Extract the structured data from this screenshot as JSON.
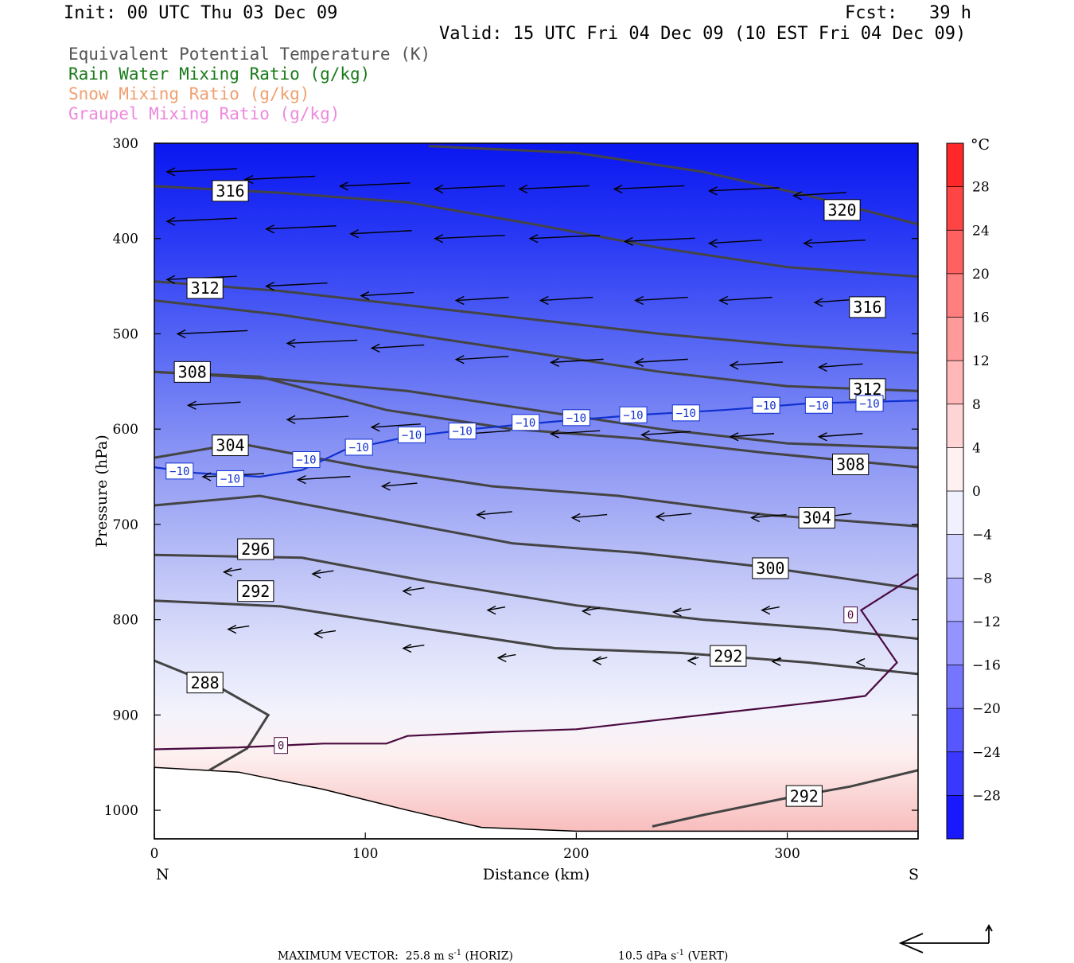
{
  "header": {
    "init": "Init: 00 UTC Thu 03 Dec 09",
    "fcst": "Fcst:   39 h",
    "valid": "Valid: 15 UTC Fri 04 Dec 09 (10 EST Fri 04 Dec 09)"
  },
  "fields": [
    "Equivalent Potential Temperature (K)",
    "Rain Water Mixing Ratio (g/kg)",
    "Snow Mixing Ratio (g/kg)",
    "Graupel Mixing Ratio (g/kg)"
  ],
  "colors": {
    "theta_e": "#444444",
    "rain": "#1a7a1a",
    "snow": "#f0a070",
    "graupel": "#ee88dd",
    "isotherm_minus10": "#1030d0",
    "isotherm_zero": "#4a0a40"
  },
  "footer": {
    "label": "MAXIMUM VECTOR:",
    "horiz_value": "25.8 m s",
    "horiz_unit": "(HORIZ)",
    "vert_value": "10.5 dPa s",
    "vert_unit": "(VERT)",
    "exponent": "-1"
  },
  "chart_data": {
    "type": "heatmap",
    "title": "",
    "xlabel": "Distance (km)",
    "ylabel": "Pressure (hPa)",
    "xlim": [
      0,
      362
    ],
    "ylim": [
      300,
      1030
    ],
    "x_ticks": [
      0,
      100,
      200,
      300
    ],
    "y_ticks": [
      300,
      400,
      500,
      600,
      700,
      800,
      900,
      1000
    ],
    "x_end_labels": {
      "left": "N",
      "right": "S"
    },
    "colorbar": {
      "unit": "°C",
      "range": [
        -32,
        32
      ],
      "step": 4,
      "labels": [
        28,
        24,
        20,
        16,
        12,
        8,
        4,
        0,
        -4,
        -8,
        -12,
        -16,
        -20,
        -24,
        -28
      ],
      "label_texts": [
        "28",
        "24",
        "20",
        "16",
        "12",
        "8",
        "4",
        "0",
        "−4",
        "−8",
        "−12",
        "−16",
        "−20",
        "−24",
        "−28"
      ]
    },
    "temperature_field_C": [
      {
        "p": 300,
        "t": -32
      },
      {
        "p": 400,
        "t": -26
      },
      {
        "p": 500,
        "t": -18
      },
      {
        "p": 600,
        "t": -11
      },
      {
        "p": 700,
        "t": -6
      },
      {
        "p": 800,
        "t": -2
      },
      {
        "p": 900,
        "t": 0
      },
      {
        "p": 1000,
        "t": 5
      }
    ],
    "theta_e_contours": [
      {
        "label": "316",
        "label_at": [
          36,
          350
        ],
        "points": [
          [
            0,
            345
          ],
          [
            60,
            352
          ],
          [
            120,
            362
          ],
          [
            180,
            385
          ],
          [
            240,
            410
          ],
          [
            300,
            430
          ],
          [
            362,
            440
          ]
        ]
      },
      {
        "label": "320",
        "label_at": [
          326,
          370
        ],
        "points": [
          [
            130,
            303
          ],
          [
            200,
            310
          ],
          [
            260,
            330
          ],
          [
            310,
            355
          ],
          [
            362,
            385
          ]
        ]
      },
      {
        "label": "316",
        "label_at": [
          338,
          472
        ],
        "points": [
          [
            0,
            445
          ],
          [
            60,
            455
          ],
          [
            120,
            470
          ],
          [
            180,
            485
          ],
          [
            240,
            500
          ],
          [
            300,
            512
          ],
          [
            362,
            520
          ]
        ]
      },
      {
        "label": "312",
        "label_at": [
          24,
          452
        ],
        "points": [
          [
            0,
            465
          ],
          [
            60,
            480
          ],
          [
            120,
            500
          ],
          [
            180,
            520
          ],
          [
            240,
            540
          ],
          [
            300,
            555
          ],
          [
            362,
            560
          ]
        ]
      },
      {
        "label": "312",
        "label_at": [
          338,
          558
        ],
        "points": [
          [
            0,
            540
          ],
          [
            60,
            548
          ],
          [
            120,
            560
          ],
          [
            180,
            580
          ],
          [
            240,
            600
          ],
          [
            300,
            615
          ],
          [
            362,
            620
          ]
        ]
      },
      {
        "label": "308",
        "label_at": [
          18,
          540
        ],
        "points": [
          [
            0,
            540
          ],
          [
            50,
            545
          ],
          [
            110,
            580
          ],
          [
            170,
            600
          ],
          [
            230,
            610
          ],
          [
            290,
            625
          ],
          [
            362,
            640
          ]
        ]
      },
      {
        "label": "308",
        "label_at": [
          330,
          637
        ],
        "points": [
          [
            0,
            630
          ],
          [
            40,
            615
          ],
          [
            100,
            640
          ],
          [
            160,
            660
          ],
          [
            220,
            670
          ],
          [
            290,
            690
          ],
          [
            362,
            702
          ]
        ]
      },
      {
        "label": "304",
        "label_at": [
          36,
          617
        ],
        "points": [
          [
            0,
            680
          ],
          [
            50,
            670
          ],
          [
            110,
            695
          ],
          [
            170,
            720
          ],
          [
            230,
            730
          ],
          [
            290,
            745
          ],
          [
            362,
            768
          ]
        ]
      },
      {
        "label": "304",
        "label_at": [
          314,
          693
        ],
        "points": [
          [
            0,
            732
          ],
          [
            70,
            735
          ],
          [
            130,
            760
          ],
          [
            200,
            785
          ],
          [
            260,
            800
          ],
          [
            320,
            810
          ],
          [
            362,
            820
          ]
        ]
      },
      {
        "label": "300",
        "label_at": [
          292,
          746
        ],
        "points": [
          [
            0,
            780
          ],
          [
            60,
            786
          ],
          [
            130,
            810
          ],
          [
            190,
            830
          ],
          [
            250,
            835
          ],
          [
            310,
            845
          ],
          [
            362,
            857
          ]
        ]
      },
      {
        "label": "296",
        "label_at": [
          48,
          726
        ]
      },
      {
        "label": "292",
        "label_at": [
          48,
          770
        ]
      },
      {
        "label": "292",
        "label_at": [
          272,
          838
        ]
      },
      {
        "label": "288",
        "label_at": [
          24,
          866
        ],
        "points": [
          [
            0,
            843
          ],
          [
            30,
            870
          ],
          [
            54,
            900
          ],
          [
            44,
            935
          ],
          [
            26,
            958
          ]
        ]
      },
      {
        "label": "292",
        "label_at": [
          308,
          985
        ],
        "points": [
          [
            236,
            1017
          ],
          [
            260,
            1005
          ],
          [
            300,
            987
          ],
          [
            330,
            975
          ],
          [
            362,
            958
          ]
        ]
      }
    ],
    "isotherm_minus10": {
      "label": "−10",
      "points": [
        [
          0,
          640
        ],
        [
          20,
          646
        ],
        [
          50,
          650
        ],
        [
          70,
          643
        ],
        [
          90,
          622
        ],
        [
          120,
          608
        ],
        [
          150,
          600
        ],
        [
          190,
          592
        ],
        [
          230,
          585
        ],
        [
          270,
          580
        ],
        [
          310,
          573
        ],
        [
          362,
          570
        ]
      ],
      "label_positions": [
        [
          12,
          644
        ],
        [
          36,
          652
        ],
        [
          72,
          632
        ],
        [
          97,
          619
        ],
        [
          122,
          606
        ],
        [
          146,
          602
        ],
        [
          176,
          593
        ],
        [
          200,
          588
        ],
        [
          227,
          585
        ],
        [
          252,
          583
        ],
        [
          290,
          575
        ],
        [
          315,
          575
        ],
        [
          339,
          573
        ]
      ]
    },
    "isotherm_zero": {
      "label": "0",
      "points": [
        [
          0,
          936
        ],
        [
          40,
          934
        ],
        [
          80,
          930
        ],
        [
          110,
          930
        ],
        [
          120,
          922
        ],
        [
          160,
          918
        ],
        [
          200,
          915
        ],
        [
          240,
          905
        ],
        [
          280,
          895
        ],
        [
          320,
          885
        ],
        [
          337,
          880
        ],
        [
          352,
          845
        ],
        [
          335,
          790
        ],
        [
          362,
          752
        ]
      ],
      "label_positions": [
        [
          60,
          932
        ],
        [
          330,
          795
        ]
      ]
    },
    "wind_arrows": [
      [
        3,
        330,
        40
      ],
      [
        40,
        338,
        40
      ],
      [
        85,
        345,
        40
      ],
      [
        130,
        348,
        40
      ],
      [
        170,
        348,
        40
      ],
      [
        215,
        348,
        40
      ],
      [
        260,
        350,
        40
      ],
      [
        300,
        355,
        30
      ],
      [
        3,
        382,
        40
      ],
      [
        50,
        390,
        40
      ],
      [
        90,
        395,
        35
      ],
      [
        130,
        400,
        40
      ],
      [
        175,
        400,
        40
      ],
      [
        220,
        403,
        40
      ],
      [
        260,
        405,
        30
      ],
      [
        305,
        405,
        35
      ],
      [
        3,
        443,
        40
      ],
      [
        50,
        450,
        35
      ],
      [
        95,
        460,
        30
      ],
      [
        140,
        465,
        30
      ],
      [
        180,
        465,
        30
      ],
      [
        225,
        465,
        30
      ],
      [
        265,
        465,
        30
      ],
      [
        310,
        467,
        25
      ],
      [
        8,
        500,
        40
      ],
      [
        60,
        510,
        40
      ],
      [
        100,
        515,
        30
      ],
      [
        140,
        527,
        30
      ],
      [
        185,
        530,
        30
      ],
      [
        225,
        530,
        30
      ],
      [
        270,
        533,
        30
      ],
      [
        312,
        535,
        25
      ],
      [
        13,
        575,
        30
      ],
      [
        60,
        590,
        35
      ],
      [
        100,
        598,
        28
      ],
      [
        145,
        605,
        25
      ],
      [
        185,
        605,
        28
      ],
      [
        228,
        606,
        28
      ],
      [
        270,
        608,
        25
      ],
      [
        312,
        608,
        25
      ],
      [
        20,
        650,
        35
      ],
      [
        65,
        653,
        30
      ],
      [
        105,
        660,
        20
      ],
      [
        150,
        690,
        20
      ],
      [
        195,
        693,
        20
      ],
      [
        235,
        692,
        20
      ],
      [
        280,
        693,
        20
      ],
      [
        315,
        692,
        15
      ],
      [
        30,
        750,
        10
      ],
      [
        72,
        752,
        12
      ],
      [
        115,
        770,
        12
      ],
      [
        155,
        790,
        10
      ],
      [
        200,
        791,
        10
      ],
      [
        243,
        792,
        10
      ],
      [
        285,
        790,
        10
      ],
      [
        32,
        810,
        12
      ],
      [
        73,
        815,
        12
      ],
      [
        115,
        830,
        12
      ],
      [
        160,
        840,
        10
      ],
      [
        205,
        843,
        8
      ],
      [
        250,
        843,
        6
      ],
      [
        290,
        844,
        5
      ],
      [
        330,
        845,
        3
      ]
    ]
  }
}
